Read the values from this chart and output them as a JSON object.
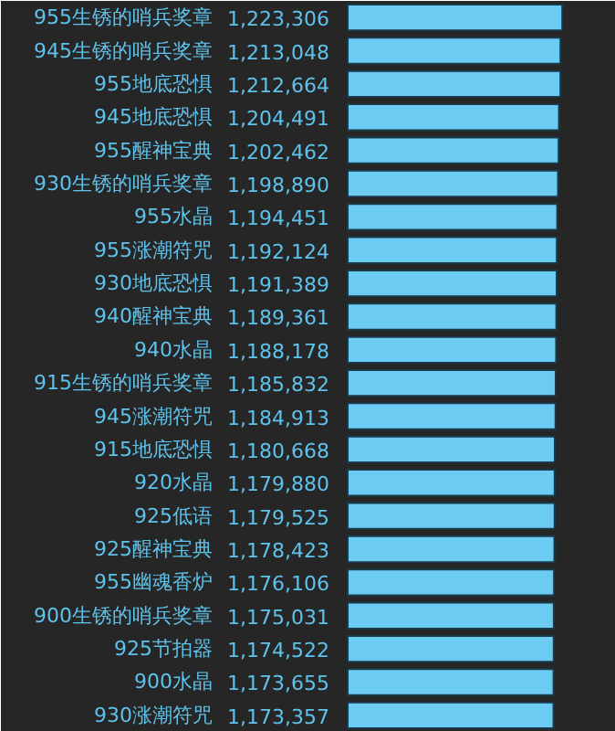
{
  "chart_data": {
    "type": "bar",
    "orientation": "horizontal",
    "value_labels": [
      "1,223,306",
      "1,213,048",
      "1,212,664",
      "1,204,491",
      "1,202,462",
      "1,198,890",
      "1,194,451",
      "1,192,124",
      "1,191,389",
      "1,189,361",
      "1,188,178",
      "1,185,832",
      "1,184,913",
      "1,180,668",
      "1,179,880",
      "1,179,525",
      "1,178,423",
      "1,176,106",
      "1,175,031",
      "1,174,522",
      "1,173,655",
      "1,173,357"
    ],
    "tick_labels": false,
    "grid": false,
    "color": "#6ccbf2",
    "categories": [
      "955生锈的哨兵奖章",
      "945生锈的哨兵奖章",
      "955地底恐惧",
      "945地底恐惧",
      "955醒神宝典",
      "930生锈的哨兵奖章",
      "955水晶",
      "955涨潮符咒",
      "930地底恐惧",
      "940醒神宝典",
      "940水晶",
      "915生锈的哨兵奖章",
      "945涨潮符咒",
      "915地底恐惧",
      "920水晶",
      "925低语",
      "925醒神宝典",
      "955幽魂香炉",
      "900生锈的哨兵奖章",
      "925节拍器",
      "900水晶",
      "930涨潮符咒"
    ],
    "values": [
      1223306,
      1213048,
      1212664,
      1204491,
      1202462,
      1198890,
      1194451,
      1192124,
      1191389,
      1189361,
      1188178,
      1185832,
      1184913,
      1180668,
      1179880,
      1179525,
      1178423,
      1176106,
      1175031,
      1174522,
      1173655,
      1173357
    ]
  }
}
